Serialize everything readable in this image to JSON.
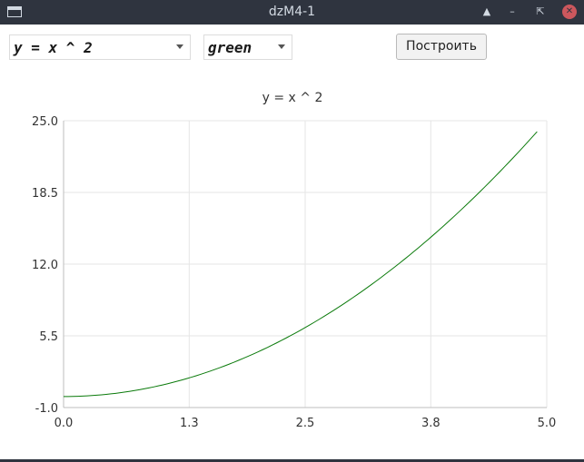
{
  "window": {
    "title": "dzM4-1"
  },
  "toolbar": {
    "function_value": "y = x ^ 2",
    "color_value": "green",
    "build_label": "Построить"
  },
  "chart_data": {
    "type": "line",
    "title": "y = x ^ 2",
    "xlabel": "",
    "ylabel": "",
    "xlim": [
      0.0,
      5.0
    ],
    "ylim": [
      -1.0,
      25.0
    ],
    "x_ticks": [
      "0.0",
      "1.3",
      "2.5",
      "3.8",
      "5.0"
    ],
    "y_ticks": [
      "25.0",
      "18.5",
      "12.0",
      "5.5",
      "-1.0"
    ],
    "grid": true,
    "series": [
      {
        "color": "#0a7a0a",
        "function": "x^2",
        "x_range": [
          0.0,
          4.9
        ]
      }
    ]
  }
}
